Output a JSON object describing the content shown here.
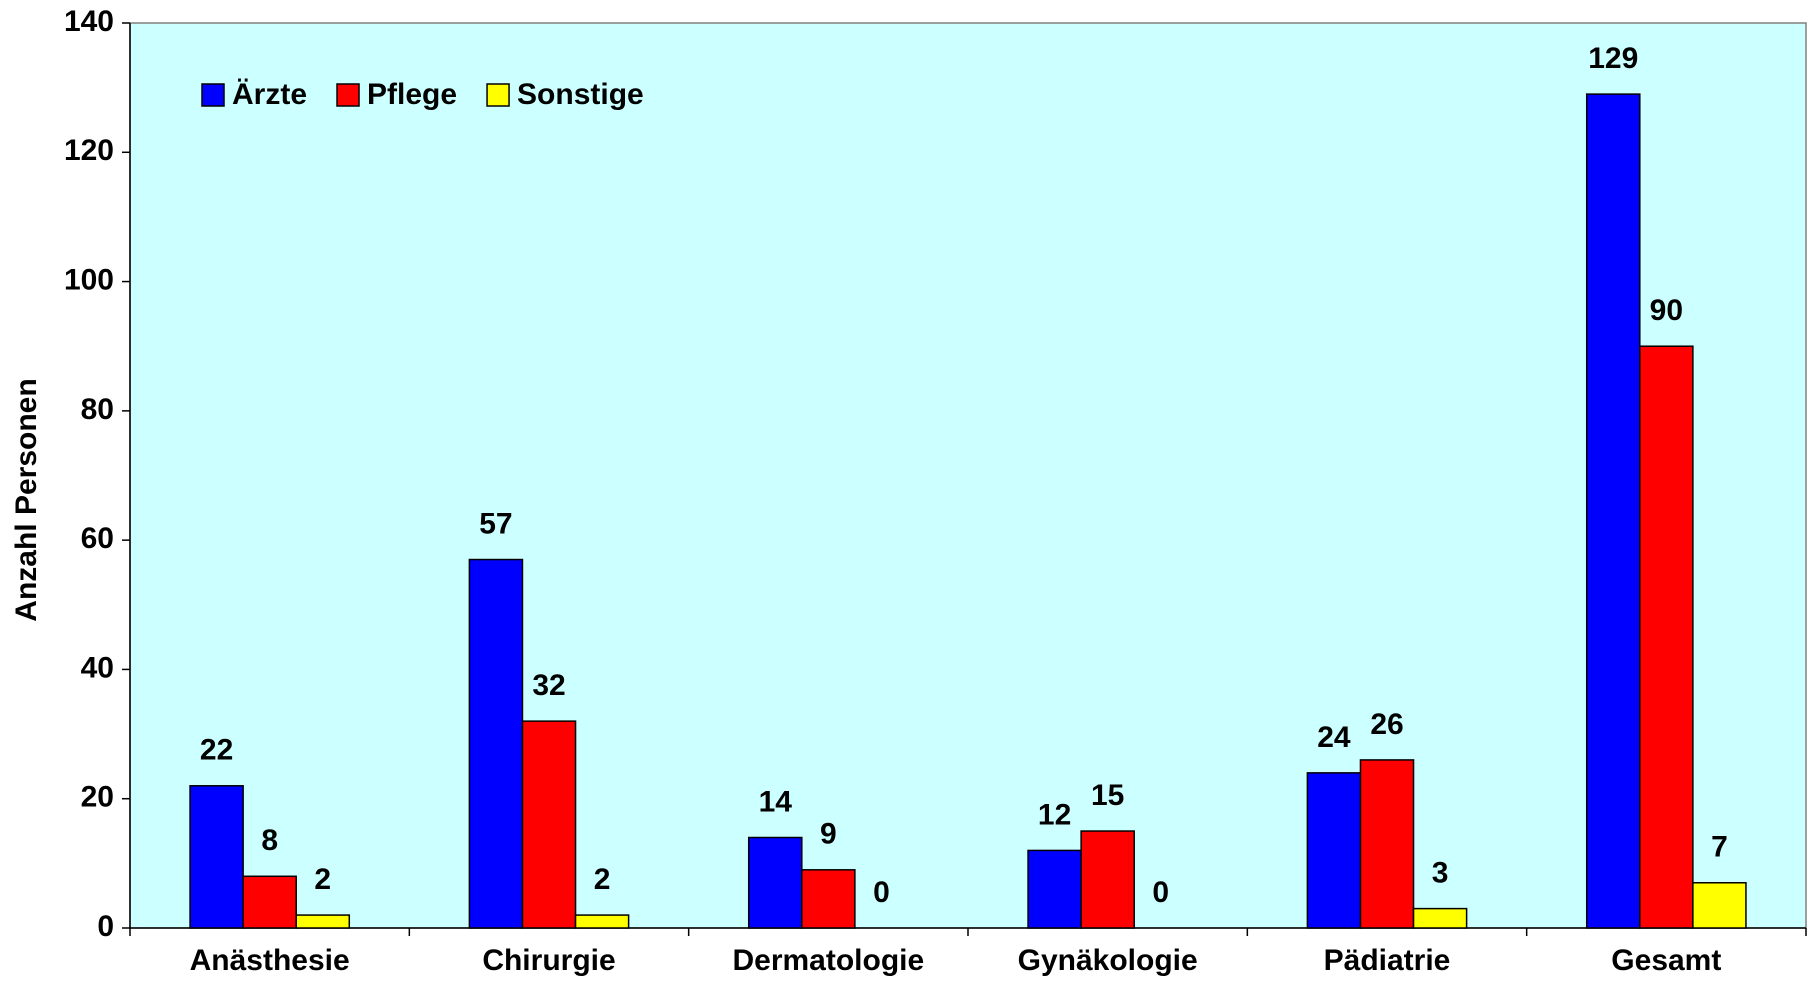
{
  "chart_data": {
    "type": "bar",
    "y_label": "Anzahl Personen",
    "categories": [
      "Anästhesie",
      "Chirurgie",
      "Dermatologie",
      "Gynäkologie",
      "Pädiatrie",
      "Gesamt"
    ],
    "series": [
      {
        "name": "Ärzte",
        "color": "#0000ff",
        "values": [
          22,
          57,
          14,
          12,
          24,
          129
        ]
      },
      {
        "name": "Pflege",
        "color": "#ff0000",
        "values": [
          8,
          32,
          9,
          15,
          26,
          90
        ]
      },
      {
        "name": "Sonstige",
        "color": "#ffff00",
        "values": [
          2,
          2,
          0,
          0,
          3,
          7
        ]
      }
    ],
    "ylim": [
      0,
      140
    ],
    "yticks": [
      0,
      20,
      40,
      60,
      80,
      100,
      120,
      140
    ],
    "plot_background": "#ccffff",
    "legend": "upper left"
  }
}
